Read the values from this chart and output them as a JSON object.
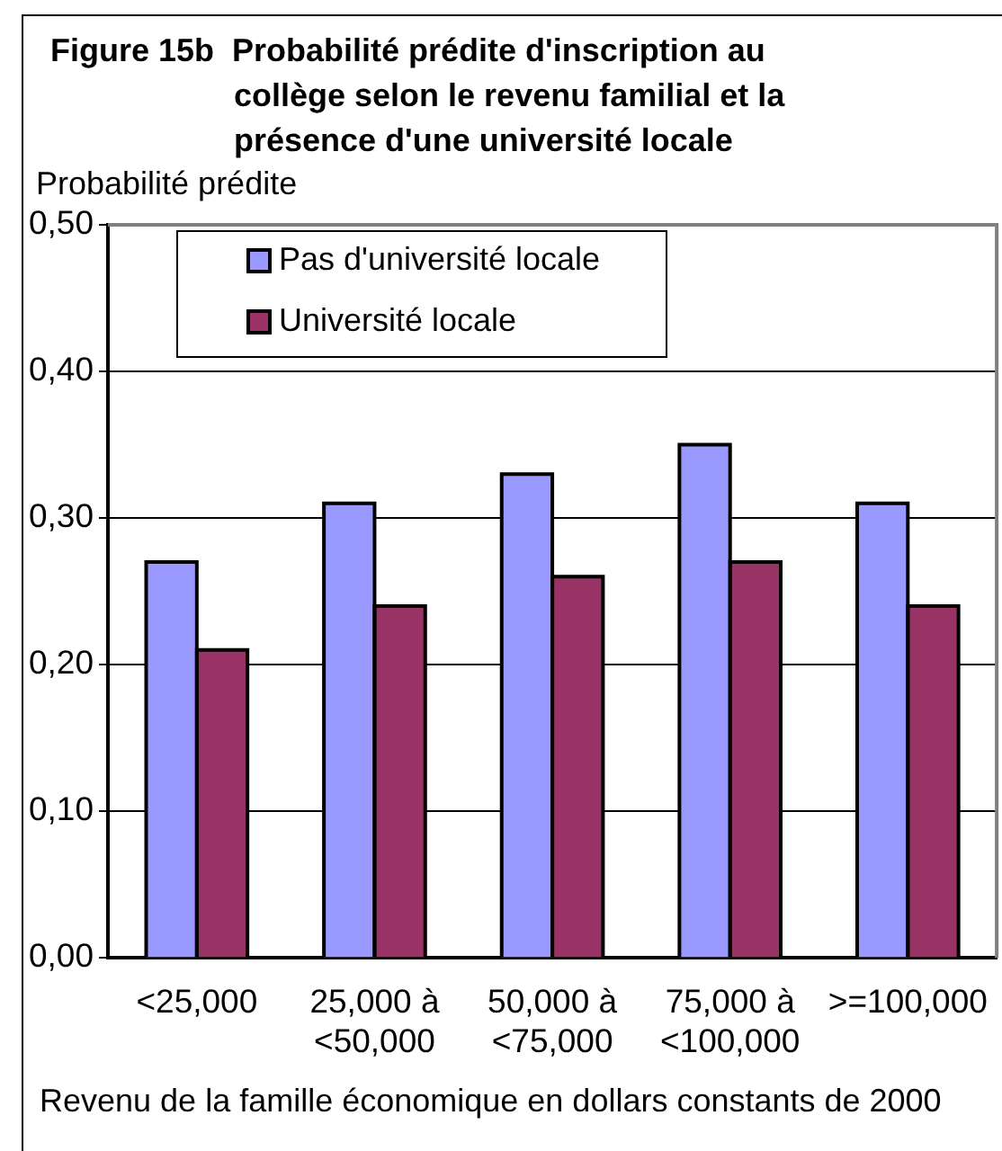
{
  "chart_data": {
    "type": "bar",
    "title": "Figure 15b  Probabilité prédite d'inscription au collège selon le revenu familial et la présence d'une université locale",
    "ylabel": "Probabilité prédite",
    "xlabel": "Revenu de la famille économique en dollars constants de 2000",
    "categories": [
      "<25,000",
      "25,000 à <50,000",
      "50,000 à <75,000",
      "75,000 à <100,000",
      ">=100,000"
    ],
    "series": [
      {
        "name": "Pas d'université locale",
        "color": "#9999ff",
        "values": [
          0.27,
          0.31,
          0.33,
          0.35,
          0.31
        ]
      },
      {
        "name": "Université locale",
        "color": "#993366",
        "values": [
          0.21,
          0.24,
          0.26,
          0.27,
          0.24
        ]
      }
    ],
    "ylim": [
      0,
      0.5
    ],
    "yticks": [
      {
        "value": 0,
        "label": "0,00"
      },
      {
        "value": 0.1,
        "label": "0,10"
      },
      {
        "value": 0.2,
        "label": "0,20"
      },
      {
        "value": 0.3,
        "label": "0,30"
      },
      {
        "value": 0.4,
        "label": "0,40"
      },
      {
        "value": 0.5,
        "label": "0,50"
      }
    ],
    "grid": "y",
    "legend": "top left"
  }
}
